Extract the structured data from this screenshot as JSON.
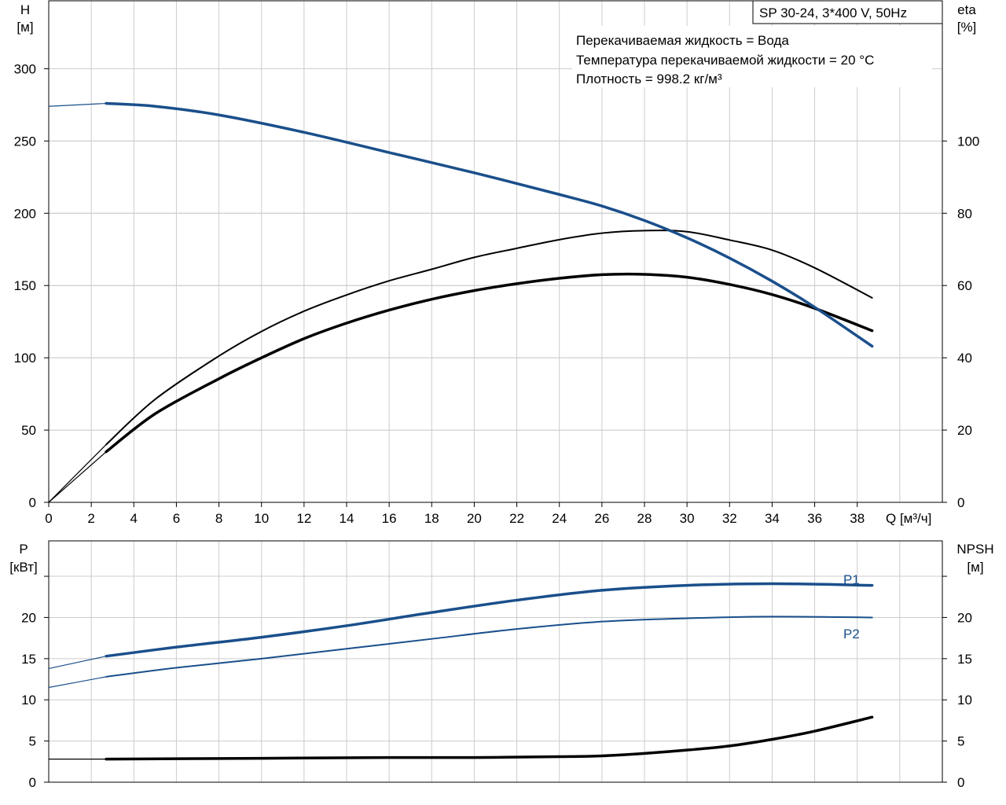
{
  "chart_data": [
    {
      "type": "line",
      "title": "SP 30-24, 3*400 V, 50Hz",
      "info_lines": [
        "Перекачиваемая жидкость = Вода",
        "Температура перекачиваемой жидкости = 20 °C",
        "Плотность = 998.2 кг/м³"
      ],
      "xlabel": "Q [м³/ч]",
      "ylabel_left": [
        "H",
        "[м]"
      ],
      "ylabel_right": [
        "eta",
        "[%]"
      ],
      "xlim": [
        0,
        42
      ],
      "ylim_left": [
        0,
        347
      ],
      "ylim_right": [
        0,
        138.8
      ],
      "x_ticks": [
        "0",
        "2",
        "4",
        "6",
        "8",
        "10",
        "12",
        "14",
        "16",
        "18",
        "20",
        "22",
        "24",
        "26",
        "28",
        "30",
        "32",
        "34",
        "36",
        "38"
      ],
      "y_left_ticks": [
        "0",
        "50",
        "100",
        "150",
        "200",
        "250",
        "300"
      ],
      "y_right_ticks": [
        "0",
        "20",
        "40",
        "60",
        "80",
        "100"
      ],
      "grid": true,
      "colors": {
        "head": "#1a4f8b",
        "efficiency": "#000000"
      },
      "series": [
        {
          "role": "head",
          "axis": "left",
          "color": "#1a4f8b",
          "x": [
            0,
            2.7,
            5,
            8,
            12,
            16,
            20,
            24,
            26,
            28,
            30,
            32,
            34,
            36,
            38.7
          ],
          "y": [
            274,
            276,
            274,
            268,
            256,
            242,
            228,
            213,
            205,
            195,
            183,
            169,
            153,
            135,
            108
          ],
          "operating_from_x": 2.7
        },
        {
          "role": "efficiency_thin",
          "axis": "right",
          "color": "#000000",
          "x": [
            0,
            2.7,
            5,
            8,
            10,
            12,
            14,
            16,
            18,
            20,
            22,
            24,
            26,
            28,
            30,
            32,
            34,
            36,
            38.7
          ],
          "y": [
            0,
            16,
            28.5,
            40.5,
            47.3,
            52.9,
            57.4,
            61.3,
            64.5,
            67.8,
            70.3,
            72.7,
            74.5,
            75.2,
            74.9,
            72.6,
            69.8,
            64.9,
            56.6
          ],
          "operating_from_x": 2.7
        },
        {
          "role": "efficiency_thick",
          "axis": "right",
          "color": "#000000",
          "x": [
            0,
            2.7,
            5,
            8,
            10,
            12,
            14,
            16,
            18,
            20,
            22,
            24,
            26,
            28,
            30,
            32,
            34,
            36,
            38.7
          ],
          "y": [
            0,
            14,
            24.5,
            34.2,
            40,
            45.3,
            49.6,
            53.2,
            56.2,
            58.6,
            60.5,
            62,
            63,
            63.1,
            62.3,
            60.3,
            57.5,
            53.7,
            47.5
          ],
          "operating_from_x": 2.7
        }
      ]
    },
    {
      "type": "line",
      "ylabel_left": [
        "P",
        "[кВт]"
      ],
      "ylabel_right": [
        "NPSH",
        "[м]"
      ],
      "xlim": [
        0,
        42
      ],
      "ylim_left": [
        0,
        29.3
      ],
      "ylim_right": [
        0,
        29.3
      ],
      "y_left_ticks": [
        "0",
        "5",
        "10",
        "15",
        "20"
      ],
      "y_right_ticks": [
        "0",
        "5",
        "10",
        "15",
        "20"
      ],
      "grid": true,
      "colors": {
        "power": "#1a4f8b",
        "npsh": "#000000"
      },
      "series": [
        {
          "name": "P1",
          "axis": "left",
          "color": "#1a4f8b",
          "x": [
            0,
            2.7,
            6,
            10,
            14,
            18,
            22,
            26,
            30,
            34,
            38.7
          ],
          "y": [
            13.8,
            15.3,
            16.4,
            17.6,
            19,
            20.6,
            22.1,
            23.3,
            23.9,
            24.1,
            23.9
          ],
          "operating_from_x": 2.7
        },
        {
          "name": "P2",
          "axis": "left",
          "color": "#1a4f8b",
          "x": [
            0,
            2.7,
            6,
            10,
            14,
            18,
            22,
            26,
            30,
            34,
            38.7
          ],
          "y": [
            11.5,
            12.8,
            13.9,
            15,
            16.2,
            17.4,
            18.6,
            19.5,
            19.9,
            20.1,
            20
          ],
          "operating_from_x": 2.7
        },
        {
          "role": "npsh",
          "axis": "right",
          "color": "#000000",
          "x": [
            0,
            2.7,
            10,
            16,
            20,
            24,
            26,
            28,
            30,
            32,
            34,
            36,
            38.7
          ],
          "y": [
            2.8,
            2.8,
            2.9,
            3,
            3,
            3.1,
            3.2,
            3.5,
            3.9,
            4.4,
            5.2,
            6.2,
            7.9
          ],
          "operating_from_x": 2.7
        }
      ]
    }
  ]
}
